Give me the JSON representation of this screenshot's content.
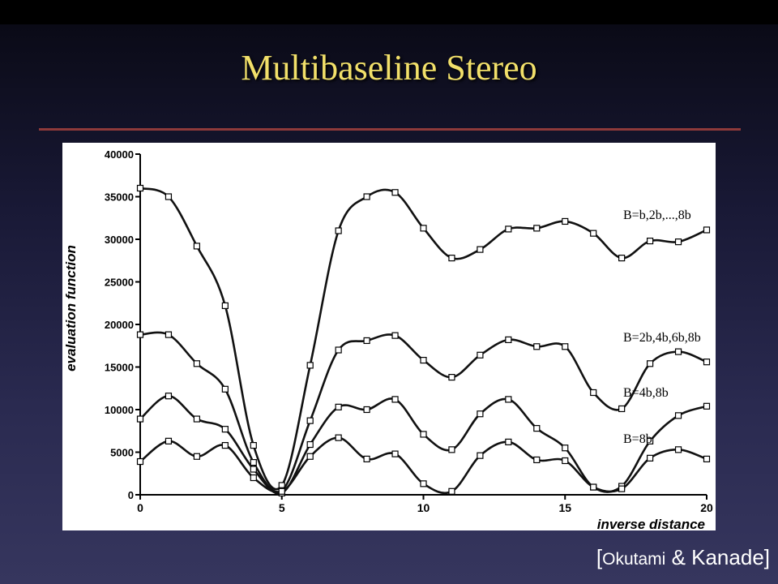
{
  "slide": {
    "title": "Multibaseline Stereo",
    "citation_open": "[",
    "citation_name": "Okutami",
    "citation_rest": " & Kanade]"
  },
  "colors": {
    "title": "#f2e06a",
    "rule": "#8e3a3a",
    "line": "#111111",
    "chart_bg": "#ffffff"
  },
  "chart_data": {
    "type": "line",
    "xlabel": "inverse distance",
    "ylabel": "evaluation function",
    "xlim": [
      0,
      20
    ],
    "ylim": [
      0,
      40000
    ],
    "xticks": [
      0,
      5,
      10,
      15,
      20
    ],
    "yticks": [
      0,
      5000,
      10000,
      15000,
      20000,
      25000,
      30000,
      35000,
      40000
    ],
    "grid": false,
    "marker": "square",
    "x": [
      0,
      1,
      2,
      3,
      4,
      5,
      6,
      7,
      8,
      9,
      10,
      11,
      12,
      13,
      14,
      15,
      16,
      17,
      18,
      19,
      20
    ],
    "series": [
      {
        "name": "B=b,2b,...,8b",
        "values": [
          36000,
          35000,
          29200,
          22200,
          5800,
          1100,
          15200,
          31000,
          35000,
          35500,
          31300,
          27800,
          28800,
          31200,
          31300,
          32100,
          30700,
          27800,
          29800,
          29700,
          31100
        ]
      },
      {
        "name": "B=2b,4b,6b,8b",
        "values": [
          18800,
          18800,
          15400,
          12400,
          3800,
          500,
          8700,
          17000,
          18100,
          18700,
          15800,
          13800,
          16400,
          18200,
          17400,
          17400,
          12000,
          10100,
          15400,
          16800,
          15600
        ]
      },
      {
        "name": "B=4b,8b",
        "values": [
          8900,
          11600,
          8900,
          7700,
          3000,
          200,
          5900,
          10300,
          10000,
          11200,
          7100,
          5300,
          9500,
          11200,
          7800,
          5500,
          900,
          1000,
          6300,
          9300,
          10400
        ]
      },
      {
        "name": "B=8b",
        "values": [
          3900,
          6300,
          4500,
          5800,
          2000,
          400,
          4500,
          6700,
          4200,
          4800,
          1300,
          400,
          4600,
          6200,
          4100,
          4000,
          900,
          700,
          4300,
          5300,
          4200
        ]
      }
    ]
  }
}
